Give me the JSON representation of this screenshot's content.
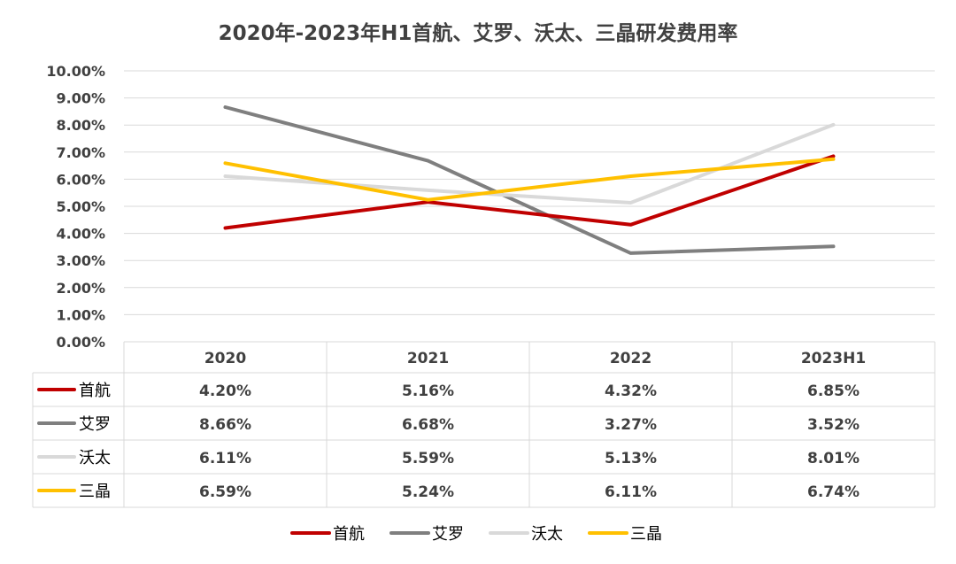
{
  "chart_data": {
    "type": "line",
    "title": "2020年-2023年H1首航、艾罗、沃太、三晶研发费用率",
    "categories": [
      "2020",
      "2021",
      "2022",
      "2023H1"
    ],
    "y_ticks": [
      "0.00%",
      "1.00%",
      "2.00%",
      "3.00%",
      "4.00%",
      "5.00%",
      "6.00%",
      "7.00%",
      "8.00%",
      "9.00%",
      "10.00%"
    ],
    "ylim": [
      0,
      10
    ],
    "grid": true,
    "legend_position": "bottom",
    "series": [
      {
        "name": "首航",
        "color": "#c00000",
        "values": [
          4.2,
          5.16,
          4.32,
          6.85
        ],
        "labels": [
          "4.20%",
          "5.16%",
          "4.32%",
          "6.85%"
        ]
      },
      {
        "name": "艾罗",
        "color": "#7f7f7f",
        "values": [
          8.66,
          6.68,
          3.27,
          3.52
        ],
        "labels": [
          "8.66%",
          "6.68%",
          "3.27%",
          "3.52%"
        ]
      },
      {
        "name": "沃太",
        "color": "#d9d9d9",
        "values": [
          6.11,
          5.59,
          5.13,
          8.01
        ],
        "labels": [
          "6.11%",
          "5.59%",
          "5.13%",
          "8.01%"
        ]
      },
      {
        "name": "三晶",
        "color": "#ffc000",
        "values": [
          6.59,
          5.24,
          6.11,
          6.74
        ],
        "labels": [
          "6.59%",
          "5.24%",
          "6.11%",
          "6.74%"
        ]
      }
    ]
  }
}
